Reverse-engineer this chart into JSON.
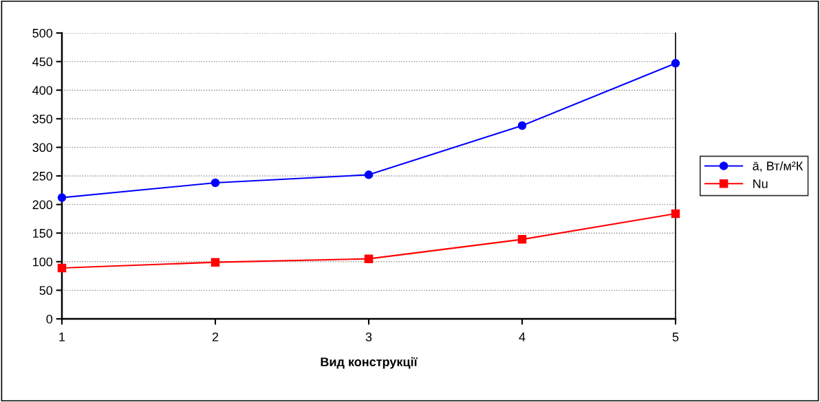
{
  "chart_data": {
    "type": "line",
    "xlabel": "Вид конструкції",
    "x": [
      1,
      2,
      3,
      4,
      5
    ],
    "series": [
      {
        "name": "ā, Вт/м²К",
        "color": "#0000ff",
        "marker": "circle",
        "values": [
          212,
          238,
          252,
          338,
          447
        ]
      },
      {
        "name": "Nu",
        "color": "#ff0000",
        "marker": "square",
        "values": [
          89,
          99,
          105,
          139,
          184
        ]
      }
    ],
    "xlim": [
      1,
      5
    ],
    "xticks": [
      1,
      2,
      3,
      4,
      5
    ],
    "ylim": [
      0,
      500
    ],
    "yticks": [
      0,
      50,
      100,
      150,
      200,
      250,
      300,
      350,
      400,
      450,
      500
    ],
    "grid": "y",
    "legend": "right",
    "line_style": "solid"
  }
}
